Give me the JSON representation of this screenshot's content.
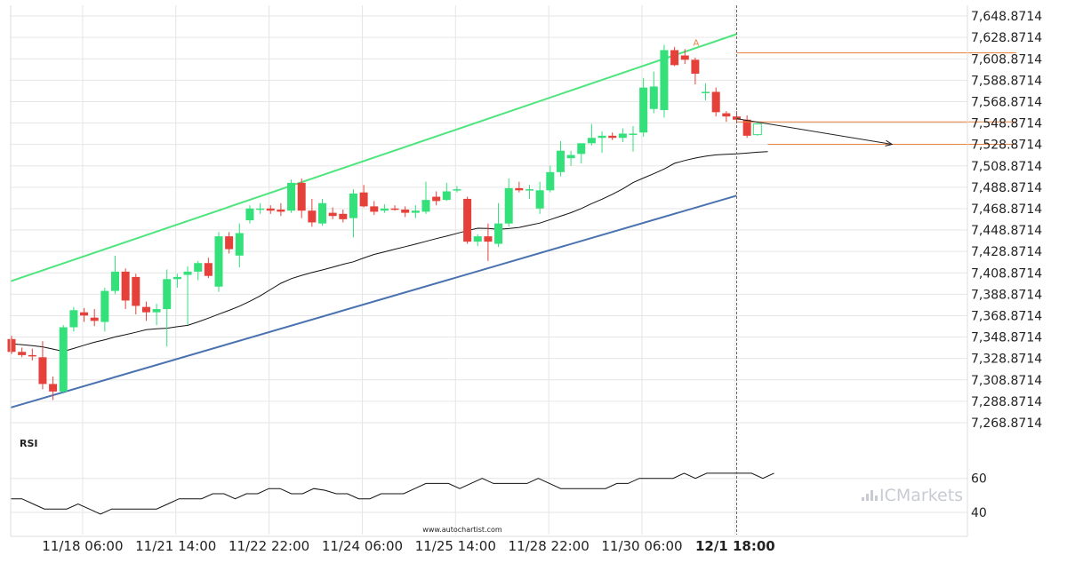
{
  "colors": {
    "up": "#33e07a",
    "down": "#e5413a",
    "channel_upper": "#4ee57e",
    "channel_lower": "#4a72b0",
    "moving_average": "#111111",
    "level_lines": "#e8823c",
    "grid": "#e6e6e6",
    "rsi_line": "#111111",
    "watermark": "#c8ccd2"
  },
  "watermark": {
    "brand": "ICMarkets",
    "icon": "bar-chart-icon"
  },
  "footer": {
    "source": "www.autochartist.com"
  },
  "chart_data": [
    {
      "type": "candlestick",
      "title": "",
      "grid": true,
      "y_axis": {
        "position": "right",
        "ylim": [
          7258.8714,
          7658.8714
        ],
        "ticks": [
          7648.8714,
          7628.8714,
          7608.8714,
          7588.8714,
          7568.8714,
          7548.8714,
          7528.8714,
          7508.8714,
          7488.8714,
          7468.8714,
          7448.8714,
          7428.8714,
          7408.8714,
          7388.8714,
          7368.8714,
          7348.8714,
          7328.8714,
          7308.8714,
          7288.8714,
          7268.8714
        ],
        "tick_labels": [
          "7,648.8714",
          "7,628.8714",
          "7,608.8714",
          "7,588.8714",
          "7,568.8714",
          "7,548.8714",
          "7,528.8714",
          "7,508.8714",
          "7,488.8714",
          "7,468.8714",
          "7,448.8714",
          "7,428.8714",
          "7,408.8714",
          "7,388.8714",
          "7,368.8714",
          "7,348.8714",
          "7,328.8714",
          "7,308.8714",
          "7,288.8714",
          "7,268.8714"
        ]
      },
      "x_axis": {
        "bar_count": 74,
        "tick_labels": [
          {
            "bar": 6,
            "label": "11/18 06:00",
            "bold": false
          },
          {
            "bar": 15,
            "label": "11/21 14:00",
            "bold": false
          },
          {
            "bar": 24,
            "label": "11/22 22:00",
            "bold": false
          },
          {
            "bar": 33,
            "label": "11/24 06:00",
            "bold": false
          },
          {
            "bar": 42,
            "label": "11/25 14:00",
            "bold": false
          },
          {
            "bar": 51,
            "label": "11/28 22:00",
            "bold": false
          },
          {
            "bar": 60,
            "label": "11/30 06:00",
            "bold": false
          },
          {
            "bar": 69,
            "label": "12/1 18:00",
            "bold": true
          }
        ]
      },
      "candles": [
        {
          "o": 7347,
          "h": 7350,
          "l": 7333,
          "c": 7335
        },
        {
          "o": 7335,
          "h": 7339,
          "l": 7330,
          "c": 7332
        },
        {
          "o": 7332,
          "h": 7338,
          "l": 7327,
          "c": 7331
        },
        {
          "o": 7330,
          "h": 7345,
          "l": 7300,
          "c": 7305
        },
        {
          "o": 7305,
          "h": 7312,
          "l": 7290,
          "c": 7298
        },
        {
          "o": 7298,
          "h": 7360,
          "l": 7296,
          "c": 7358
        },
        {
          "o": 7358,
          "h": 7377,
          "l": 7354,
          "c": 7374
        },
        {
          "o": 7372,
          "h": 7376,
          "l": 7363,
          "c": 7369
        },
        {
          "o": 7367,
          "h": 7375,
          "l": 7359,
          "c": 7364
        },
        {
          "o": 7363,
          "h": 7395,
          "l": 7354,
          "c": 7392
        },
        {
          "o": 7392,
          "h": 7425,
          "l": 7389,
          "c": 7410
        },
        {
          "o": 7410,
          "h": 7413,
          "l": 7375,
          "c": 7383
        },
        {
          "o": 7405,
          "h": 7408,
          "l": 7370,
          "c": 7378
        },
        {
          "o": 7377,
          "h": 7382,
          "l": 7364,
          "c": 7372
        },
        {
          "o": 7372,
          "h": 7380,
          "l": 7360,
          "c": 7375
        },
        {
          "o": 7375,
          "h": 7412,
          "l": 7340,
          "c": 7403
        },
        {
          "o": 7403,
          "h": 7408,
          "l": 7395,
          "c": 7405
        },
        {
          "o": 7407,
          "h": 7415,
          "l": 7360,
          "c": 7410
        },
        {
          "o": 7410,
          "h": 7420,
          "l": 7402,
          "c": 7418
        },
        {
          "o": 7418,
          "h": 7423,
          "l": 7404,
          "c": 7406
        },
        {
          "o": 7396,
          "h": 7447,
          "l": 7391,
          "c": 7443
        },
        {
          "o": 7443,
          "h": 7447,
          "l": 7427,
          "c": 7431
        },
        {
          "o": 7425,
          "h": 7455,
          "l": 7414,
          "c": 7446
        },
        {
          "o": 7458,
          "h": 7472,
          "l": 7455,
          "c": 7469
        },
        {
          "o": 7469,
          "h": 7474,
          "l": 7464,
          "c": 7469
        },
        {
          "o": 7469,
          "h": 7472,
          "l": 7464,
          "c": 7467
        },
        {
          "o": 7468,
          "h": 7474,
          "l": 7462,
          "c": 7466
        },
        {
          "o": 7467,
          "h": 7496,
          "l": 7465,
          "c": 7493
        },
        {
          "o": 7493,
          "h": 7497,
          "l": 7460,
          "c": 7467
        },
        {
          "o": 7467,
          "h": 7478,
          "l": 7452,
          "c": 7456
        },
        {
          "o": 7455,
          "h": 7478,
          "l": 7453,
          "c": 7474
        },
        {
          "o": 7465,
          "h": 7470,
          "l": 7459,
          "c": 7462
        },
        {
          "o": 7464,
          "h": 7468,
          "l": 7456,
          "c": 7459
        },
        {
          "o": 7460,
          "h": 7487,
          "l": 7442,
          "c": 7483
        },
        {
          "o": 7484,
          "h": 7491,
          "l": 7470,
          "c": 7471
        },
        {
          "o": 7471,
          "h": 7476,
          "l": 7463,
          "c": 7466
        },
        {
          "o": 7467,
          "h": 7473,
          "l": 7465,
          "c": 7469
        },
        {
          "o": 7469,
          "h": 7472,
          "l": 7467,
          "c": 7468
        },
        {
          "o": 7468,
          "h": 7471,
          "l": 7461,
          "c": 7465
        },
        {
          "o": 7465,
          "h": 7472,
          "l": 7460,
          "c": 7467
        },
        {
          "o": 7466,
          "h": 7494,
          "l": 7464,
          "c": 7477
        },
        {
          "o": 7480,
          "h": 7485,
          "l": 7472,
          "c": 7476
        },
        {
          "o": 7477,
          "h": 7493,
          "l": 7476,
          "c": 7485
        },
        {
          "o": 7487,
          "h": 7490,
          "l": 7484,
          "c": 7487
        },
        {
          "o": 7478,
          "h": 7480,
          "l": 7436,
          "c": 7438
        },
        {
          "o": 7438,
          "h": 7445,
          "l": 7434,
          "c": 7443
        },
        {
          "o": 7443,
          "h": 7455,
          "l": 7420,
          "c": 7438
        },
        {
          "o": 7436,
          "h": 7474,
          "l": 7433,
          "c": 7455
        },
        {
          "o": 7455,
          "h": 7497,
          "l": 7452,
          "c": 7488
        },
        {
          "o": 7488,
          "h": 7494,
          "l": 7484,
          "c": 7486
        },
        {
          "o": 7486,
          "h": 7491,
          "l": 7478,
          "c": 7487
        },
        {
          "o": 7469,
          "h": 7494,
          "l": 7464,
          "c": 7486
        },
        {
          "o": 7486,
          "h": 7509,
          "l": 7484,
          "c": 7503
        },
        {
          "o": 7503,
          "h": 7532,
          "l": 7499,
          "c": 7523
        },
        {
          "o": 7516,
          "h": 7523,
          "l": 7509,
          "c": 7519
        },
        {
          "o": 7520,
          "h": 7528,
          "l": 7511,
          "c": 7530
        },
        {
          "o": 7530,
          "h": 7548,
          "l": 7528,
          "c": 7535
        },
        {
          "o": 7535,
          "h": 7541,
          "l": 7521,
          "c": 7537
        },
        {
          "o": 7537,
          "h": 7540,
          "l": 7533,
          "c": 7535
        },
        {
          "o": 7535,
          "h": 7544,
          "l": 7531,
          "c": 7539
        },
        {
          "o": 7539,
          "h": 7546,
          "l": 7522,
          "c": 7539
        },
        {
          "o": 7540,
          "h": 7591,
          "l": 7536,
          "c": 7582
        },
        {
          "o": 7562,
          "h": 7597,
          "l": 7558,
          "c": 7583
        },
        {
          "o": 7561,
          "h": 7622,
          "l": 7554,
          "c": 7617
        },
        {
          "o": 7617,
          "h": 7620,
          "l": 7602,
          "c": 7603
        },
        {
          "o": 7612,
          "h": 7618,
          "l": 7604,
          "c": 7608
        },
        {
          "o": 7608,
          "h": 7610,
          "l": 7585,
          "c": 7595
        },
        {
          "o": 7577,
          "h": 7586,
          "l": 7570,
          "c": 7578
        },
        {
          "o": 7578,
          "h": 7582,
          "l": 7555,
          "c": 7559
        },
        {
          "o": 7558,
          "h": 7560,
          "l": 7550,
          "c": 7555
        },
        {
          "o": 7555,
          "h": 7560,
          "l": 7550,
          "c": 7552
        },
        {
          "o": 7552,
          "h": 7556,
          "l": 7535,
          "c": 7537
        },
        {
          "o": 7538,
          "h": 7549,
          "l": 7537,
          "c": 7548
        }
      ],
      "moving_average": [
        7342.5,
        7341.8,
        7340.9,
        7339.7,
        7337.6,
        7335.5,
        7338.2,
        7341.2,
        7344.0,
        7346.3,
        7349.0,
        7351.1,
        7353.3,
        7355.7,
        7356.6,
        7357.1,
        7358.5,
        7359.8,
        7363.0,
        7366.5,
        7370.2,
        7373.8,
        7377.7,
        7382.3,
        7387.3,
        7393.3,
        7399.1,
        7403.4,
        7406.5,
        7409.2,
        7411.6,
        7414.1,
        7416.9,
        7419.2,
        7422.8,
        7426.1,
        7428.5,
        7431.0,
        7433.3,
        7435.7,
        7438.3,
        7440.9,
        7443.2,
        7445.8,
        7448.3,
        7450.6,
        7450.3,
        7449.6,
        7450.2,
        7451.3,
        7453.4,
        7455.4,
        7458.6,
        7461.9,
        7465.1,
        7469.0,
        7473.6,
        7477.7,
        7482.3,
        7487.3,
        7493.2,
        7497.5,
        7501.5,
        7505.9,
        7511.2,
        7513.9,
        7516.1,
        7517.9,
        7519.1,
        7519.6,
        7520.0,
        7520.8,
        7521.6,
        7522.1
      ],
      "channel_upper": {
        "start": {
          "bar": 0,
          "value": 7401
        },
        "end": {
          "bar": 70,
          "value": 7632
        }
      },
      "channel_lower": {
        "start": {
          "bar": 0,
          "value": 7283
        },
        "end": {
          "bar": 70,
          "value": 7481
        }
      },
      "forecast_arrow": {
        "start": {
          "bar": 70,
          "value": 7553
        },
        "end": {
          "bar": 85,
          "value": 7529
        }
      },
      "levels": [
        {
          "value": 7614.5,
          "from_bar": 70,
          "to_bar": 97
        },
        {
          "value": 7550,
          "from_bar": 70,
          "to_bar": 97
        },
        {
          "value": 7529,
          "from_bar": 73,
          "to_bar": 97
        }
      ],
      "marker": {
        "text": "A",
        "bar": 66,
        "value": 7619.5
      },
      "current_bar_line": 70
    },
    {
      "type": "line",
      "title": "RSI",
      "y_axis": {
        "ylim": [
          27,
          76
        ],
        "ticks": [
          60,
          40
        ],
        "tick_labels": [
          "60",
          "40"
        ]
      },
      "values": [
        48,
        48,
        45,
        42,
        42,
        42,
        45,
        42,
        39,
        42,
        42,
        42,
        42,
        42,
        45,
        48,
        48,
        48,
        51,
        51,
        48,
        51,
        51,
        54,
        54,
        51,
        51,
        54,
        53,
        51,
        51,
        48,
        48,
        51,
        51,
        51,
        54,
        57,
        57,
        57,
        54,
        57,
        60,
        57,
        57,
        57,
        57,
        60,
        57,
        54,
        54,
        54,
        54,
        54,
        57,
        57,
        60,
        60,
        60,
        60,
        63,
        60,
        63,
        63,
        63,
        63,
        63,
        60,
        63
      ]
    }
  ]
}
